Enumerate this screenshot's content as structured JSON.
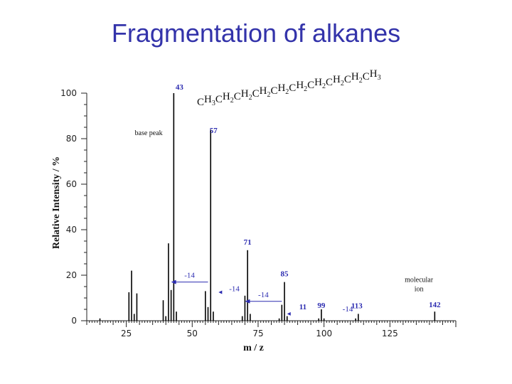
{
  "title": "Fragmentation of alkanes",
  "chart_data": {
    "type": "bar",
    "xlabel": "m / z",
    "ylabel": "Relative Intensity / %",
    "xlim": [
      10,
      150
    ],
    "ylim": [
      0,
      100
    ],
    "x_ticks": [
      25,
      50,
      75,
      100,
      125
    ],
    "y_ticks": [
      0,
      20,
      40,
      60,
      80,
      100
    ],
    "formula": "CH3CH2CH2CH2CH2CH2CH2CH2CH2CH3",
    "peaks": [
      {
        "x": 15,
        "y": 1
      },
      {
        "x": 26,
        "y": 12.5
      },
      {
        "x": 27,
        "y": 22
      },
      {
        "x": 28,
        "y": 3
      },
      {
        "x": 29,
        "y": 12
      },
      {
        "x": 39,
        "y": 9
      },
      {
        "x": 40,
        "y": 2
      },
      {
        "x": 41,
        "y": 34
      },
      {
        "x": 42,
        "y": 13.5
      },
      {
        "x": 43,
        "y": 100
      },
      {
        "x": 44,
        "y": 4
      },
      {
        "x": 55,
        "y": 13
      },
      {
        "x": 56,
        "y": 6
      },
      {
        "x": 57,
        "y": 84
      },
      {
        "x": 58,
        "y": 4
      },
      {
        "x": 69,
        "y": 2
      },
      {
        "x": 70,
        "y": 11
      },
      {
        "x": 71,
        "y": 31
      },
      {
        "x": 72,
        "y": 3
      },
      {
        "x": 83,
        "y": 1
      },
      {
        "x": 84,
        "y": 7
      },
      {
        "x": 85,
        "y": 17
      },
      {
        "x": 86,
        "y": 2
      },
      {
        "x": 98,
        "y": 1
      },
      {
        "x": 99,
        "y": 5
      },
      {
        "x": 100,
        "y": 1
      },
      {
        "x": 112,
        "y": 1
      },
      {
        "x": 113,
        "y": 3
      },
      {
        "x": 142,
        "y": 4
      }
    ],
    "peak_labels": [
      {
        "x": 43,
        "y": 100,
        "text": "43"
      },
      {
        "x": 57,
        "y": 84,
        "text": "57"
      },
      {
        "x": 71,
        "y": 31,
        "text": "71"
      },
      {
        "x": 85,
        "y": 17,
        "text": "85"
      },
      {
        "x": 99,
        "y": 5,
        "text": "99"
      },
      {
        "x": 113,
        "y": 3,
        "text": "113"
      },
      {
        "x": 142,
        "y": 4,
        "text": "142"
      }
    ],
    "base_peak_note": "base peak",
    "molecular_ion_note": [
      "molecular",
      "ion"
    ],
    "loss_arrows": [
      {
        "x_from": 56,
        "x_to": 42,
        "y": 17,
        "text": "-14"
      },
      {
        "x_from": 84,
        "x_to": 70,
        "y": 8.5,
        "text": "-14"
      }
    ],
    "loss_labels": [
      {
        "x": 66,
        "y": 13,
        "text": "-14"
      },
      {
        "x": 109,
        "y": 4,
        "text": "-14"
      }
    ],
    "faint_labels": [
      {
        "x": 92,
        "y": 5,
        "text": "11"
      }
    ],
    "arrowhead_marks": [
      {
        "x": 60,
        "y": 12.5
      },
      {
        "x": 86,
        "y": 3
      }
    ],
    "colors": {
      "title": "#3333aa",
      "annotation": "#2b2bb0",
      "axis": "#222222"
    }
  }
}
